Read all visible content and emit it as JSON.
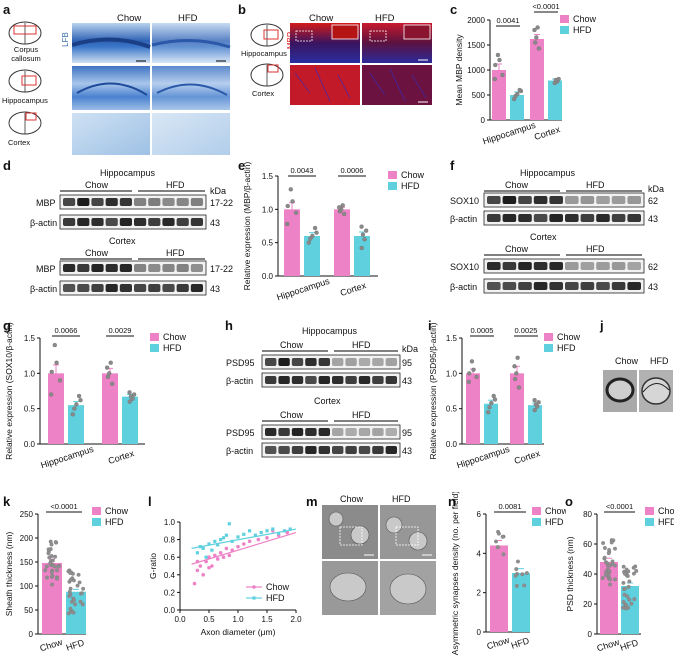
{
  "colors": {
    "chow": "#ee82c6",
    "hfd": "#5fd0de"
  },
  "panel_labels": [
    "a",
    "b",
    "c",
    "d",
    "e",
    "f",
    "g",
    "h",
    "i",
    "j",
    "k",
    "l",
    "m",
    "n",
    "o"
  ],
  "panel_a": {
    "stain": "LFB",
    "col_chow": "Chow",
    "col_hfd": "HFD",
    "rows": [
      "Corpus callosum",
      "Hippocampus",
      "Cortex"
    ]
  },
  "panel_b": {
    "stain": "MBP",
    "col_chow": "Chow",
    "col_hfd": "HFD",
    "rows": [
      "Hippocampus",
      "Cortex"
    ]
  },
  "blot_d": {
    "region1": "Hippocampus",
    "region2": "Cortex",
    "group1": "Chow",
    "group2": "HFD",
    "kda": "kDa",
    "protein": "MBP",
    "loading": "β-actin",
    "size1": "17-22",
    "size2": "43"
  },
  "blot_f": {
    "region1": "Hippocampus",
    "region2": "Cortex",
    "group1": "Chow",
    "group2": "HFD",
    "kda": "kDa",
    "protein": "SOX10",
    "loading": "β-actin",
    "size1": "62",
    "size2": "43"
  },
  "blot_h": {
    "region1": "Hippocampus",
    "region2": "Cortex",
    "group1": "Chow",
    "group2": "HFD",
    "kda": "kDa",
    "protein": "PSD95",
    "loading": "β-actin",
    "size1": "95",
    "size2": "43"
  },
  "panel_j": {
    "col_chow": "Chow",
    "col_hfd": "HFD"
  },
  "panel_m": {
    "col_chow": "Chow",
    "col_hfd": "HFD"
  },
  "chart_data": [
    {
      "id": "c",
      "type": "bar",
      "categories": [
        "Hippocampus",
        "Cortex"
      ],
      "series": [
        {
          "name": "Chow",
          "values": [
            1000,
            1620
          ],
          "err": [
            120,
            90
          ],
          "points": [
            [
              820,
              900,
              1100,
              1200,
              1300
            ],
            [
              1430,
              1550,
              1650,
              1800,
              1850
            ]
          ]
        },
        {
          "name": "HFD",
          "values": [
            500,
            790
          ],
          "err": [
            60,
            30
          ],
          "points": [
            [
              420,
              480,
              520,
              580,
              600
            ],
            [
              740,
              770,
              800,
              820
            ]
          ]
        }
      ],
      "ylabel": "Mean MBP density",
      "ylim": [
        0,
        2000
      ],
      "yticks": [
        0,
        500,
        1000,
        1500,
        2000
      ],
      "pvalues": [
        "0.0041",
        "<0.0001"
      ],
      "legend": "top-right"
    },
    {
      "id": "e",
      "type": "bar",
      "categories": [
        "Hippocampus",
        "Cortex"
      ],
      "series": [
        {
          "name": "Chow",
          "values": [
            1.0,
            1.0
          ],
          "err": [
            0.1,
            0.03
          ],
          "points": [
            [
              0.78,
              0.95,
              1.05,
              1.12,
              1.3
            ],
            [
              0.93,
              0.97,
              1.0,
              1.03,
              1.06
            ]
          ]
        },
        {
          "name": "HFD",
          "values": [
            0.6,
            0.6
          ],
          "err": [
            0.05,
            0.06
          ],
          "points": [
            [
              0.5,
              0.56,
              0.6,
              0.65,
              0.72
            ],
            [
              0.42,
              0.55,
              0.62,
              0.68,
              0.74
            ]
          ]
        }
      ],
      "ylabel": "Relative expression (MBP/β-actin)",
      "ylim": [
        0,
        1.5
      ],
      "yticks": [
        0.0,
        0.5,
        1.0,
        1.5
      ],
      "pvalues": [
        "0.0043",
        "0.0006"
      ],
      "legend": "top-right"
    },
    {
      "id": "g",
      "type": "bar",
      "categories": [
        "Hippocampus",
        "Cortex"
      ],
      "series": [
        {
          "name": "Chow",
          "values": [
            1.0,
            1.0
          ],
          "err": [
            0.12,
            0.07
          ],
          "points": [
            [
              0.7,
              0.9,
              1.02,
              1.15,
              1.4
            ],
            [
              0.85,
              0.95,
              1.0,
              1.08,
              1.15
            ]
          ]
        },
        {
          "name": "HFD",
          "values": [
            0.55,
            0.67
          ],
          "err": [
            0.05,
            0.03
          ],
          "points": [
            [
              0.42,
              0.5,
              0.56,
              0.62,
              0.68
            ],
            [
              0.6,
              0.64,
              0.67,
              0.7,
              0.73
            ]
          ]
        }
      ],
      "ylabel": "Relative expression (SOX10/β-actin)",
      "ylim": [
        0,
        1.5
      ],
      "yticks": [
        0.0,
        0.5,
        1.0,
        1.5
      ],
      "pvalues": [
        "0.0066",
        "0.0029"
      ],
      "legend": "top-right"
    },
    {
      "id": "i",
      "type": "bar",
      "categories": [
        "Hippocampus",
        "Cortex"
      ],
      "series": [
        {
          "name": "Chow",
          "values": [
            1.0,
            1.0
          ],
          "err": [
            0.06,
            0.1
          ],
          "points": [
            [
              0.88,
              0.95,
              1.0,
              1.05,
              1.17
            ],
            [
              0.8,
              0.92,
              1.0,
              1.1,
              1.22
            ]
          ]
        },
        {
          "name": "HFD",
          "values": [
            0.57,
            0.55
          ],
          "err": [
            0.05,
            0.03
          ],
          "points": [
            [
              0.45,
              0.52,
              0.58,
              0.63,
              0.68
            ],
            [
              0.48,
              0.53,
              0.56,
              0.59,
              0.62
            ]
          ]
        }
      ],
      "ylabel": "Relative expression (PSD95/β-actin)",
      "ylim": [
        0,
        1.5
      ],
      "yticks": [
        0.0,
        0.5,
        1.0,
        1.5
      ],
      "pvalues": [
        "0.0005",
        "0.0025"
      ],
      "legend": "top-right"
    },
    {
      "id": "k",
      "type": "bar",
      "categories": [
        "Chow",
        "HFD"
      ],
      "values": [
        148,
        88
      ],
      "err": [
        8,
        5
      ],
      "ylabel": "Sheath thickness (nm)",
      "ylim": [
        0,
        250
      ],
      "yticks": [
        0,
        50,
        100,
        150,
        200,
        250
      ],
      "pvalues": [
        "<0.0001"
      ],
      "legend": "top-right",
      "legend_entries": [
        "Chow",
        "HFD"
      ]
    },
    {
      "id": "l",
      "type": "scatter",
      "series": [
        {
          "name": "Chow",
          "x": [
            0.25,
            0.3,
            0.35,
            0.4,
            0.45,
            0.5,
            0.55,
            0.6,
            0.65,
            0.7,
            0.8,
            0.85,
            0.9,
            1.0,
            1.1,
            1.2,
            1.35,
            1.5,
            1.7,
            1.85,
            0.3,
            0.5,
            0.75,
            1.6
          ],
          "y": [
            0.3,
            0.45,
            0.5,
            0.4,
            0.55,
            0.6,
            0.5,
            0.62,
            0.58,
            0.65,
            0.7,
            0.62,
            0.68,
            0.72,
            0.75,
            0.78,
            0.8,
            0.82,
            0.85,
            0.88,
            0.55,
            0.48,
            0.6,
            0.9
          ],
          "fit": [
            [
              0.2,
              0.52
            ],
            [
              2.0,
              0.88
            ]
          ]
        },
        {
          "name": "HFD",
          "x": [
            0.3,
            0.35,
            0.4,
            0.5,
            0.55,
            0.6,
            0.7,
            0.75,
            0.8,
            0.9,
            1.0,
            1.1,
            1.2,
            1.3,
            1.4,
            1.5,
            1.6,
            1.7,
            1.8,
            1.9,
            0.45,
            0.65,
            0.85
          ],
          "y": [
            0.65,
            0.72,
            0.7,
            0.75,
            0.68,
            0.78,
            0.8,
            0.82,
            0.85,
            0.78,
            0.83,
            0.86,
            0.9,
            0.85,
            0.88,
            0.9,
            0.92,
            0.87,
            0.9,
            0.92,
            0.6,
            0.74,
            0.98
          ],
          "fit": [
            [
              0.2,
              0.7
            ],
            [
              2.0,
              0.92
            ]
          ]
        }
      ],
      "xlabel": "Axon diameter (μm)",
      "ylabel": "G-ratio",
      "xlim": [
        0,
        2.0
      ],
      "ylim": [
        0,
        1.0
      ],
      "xticks": [
        0.0,
        0.5,
        1.0,
        1.5,
        2.0
      ],
      "yticks": [
        0.0,
        0.2,
        0.4,
        0.6,
        0.8,
        1.0
      ],
      "legend": "bottom-right"
    },
    {
      "id": "n",
      "type": "bar",
      "categories": [
        "Chow",
        "HFD"
      ],
      "values": [
        4.4,
        3.0
      ],
      "err": [
        0.25,
        0.22
      ],
      "ylabel": "Asymmetric synapses density (no. per field)",
      "ylim": [
        0,
        6
      ],
      "yticks": [
        0,
        2,
        4,
        6
      ],
      "pvalues": [
        "0.0081"
      ],
      "legend": "top-right",
      "legend_entries": [
        "Chow",
        "HFD"
      ]
    },
    {
      "id": "o",
      "type": "bar",
      "categories": [
        "Chow",
        "HFD"
      ],
      "values": [
        48,
        32
      ],
      "err": [
        2.5,
        2
      ],
      "ylabel": "PSD thickness (nm)",
      "ylim": [
        0,
        80
      ],
      "yticks": [
        0,
        20,
        40,
        60,
        80
      ],
      "pvalues": [
        "<0.0001"
      ],
      "legend": "top-right",
      "legend_entries": [
        "Chow",
        "HFD"
      ]
    }
  ]
}
